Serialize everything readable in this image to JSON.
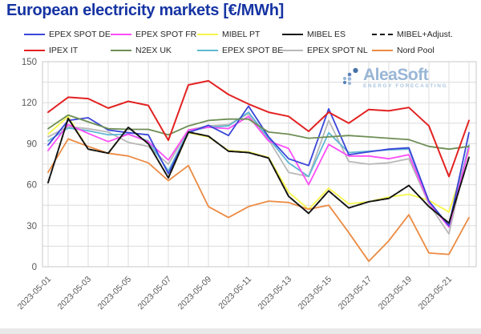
{
  "title": "European electricity markets [€/MWh]",
  "watermark": {
    "name": "AleaSoft",
    "tagline": "ENERGY FORECASTING"
  },
  "axes": {
    "y_tick_labels": [
      "0",
      "30",
      "60",
      "90",
      "120",
      "150"
    ],
    "x_tick_labels": [
      "2023-05-01",
      "2023-05-03",
      "2023-05-05",
      "2023-05-07",
      "2023-05-09",
      "2023-05-11",
      "2023-05-13",
      "2023-05-15",
      "2023-05-17",
      "2023-05-19",
      "2023-05-21"
    ]
  },
  "chart_data": {
    "type": "line",
    "title": "European electricity markets [€/MWh]",
    "xlabel": "",
    "ylabel": "",
    "ylim": [
      0,
      150
    ],
    "y_ticks": [
      0,
      30,
      60,
      90,
      120,
      150
    ],
    "grid": true,
    "legend_position": "top",
    "x": [
      "2023-05-01",
      "2023-05-02",
      "2023-05-03",
      "2023-05-04",
      "2023-05-05",
      "2023-05-06",
      "2023-05-07",
      "2023-05-08",
      "2023-05-09",
      "2023-05-10",
      "2023-05-11",
      "2023-05-12",
      "2023-05-13",
      "2023-05-14",
      "2023-05-15",
      "2023-05-16",
      "2023-05-17",
      "2023-05-18",
      "2023-05-19",
      "2023-05-20",
      "2023-05-21",
      "2023-05-22"
    ],
    "series": [
      {
        "name": "EPEX SPOT DE",
        "color": "#3a46d8",
        "dash": false,
        "values": [
          89,
          107,
          109,
          100,
          98,
          96.5,
          68,
          98,
          103.5,
          96,
          117.5,
          95,
          79,
          74,
          115.5,
          82,
          84,
          86,
          87,
          48,
          30,
          98
        ]
      },
      {
        "name": "EPEX SPOT FR",
        "color": "#fb4ef7",
        "dash": false,
        "values": [
          85,
          104,
          97.5,
          91.5,
          97,
          91.5,
          78,
          100,
          102,
          101,
          110,
          92,
          86.5,
          60,
          89.5,
          81,
          81,
          79,
          82,
          47,
          29,
          87
        ]
      },
      {
        "name": "MIBEL PT",
        "color": "#f6f64a",
        "dash": false,
        "values": [
          97,
          110,
          86,
          83,
          102,
          90,
          65,
          98,
          95,
          85,
          84,
          80,
          54.5,
          42,
          57.5,
          46,
          47.5,
          51,
          53,
          48.5,
          40,
          85
        ]
      },
      {
        "name": "MIBEL ES",
        "color": "#141414",
        "dash": false,
        "values": [
          61.5,
          108.5,
          86,
          83,
          102,
          90,
          65,
          98.5,
          95.5,
          84.5,
          83.5,
          79.5,
          51.5,
          39,
          55.5,
          43,
          47.5,
          50,
          59.5,
          44,
          32,
          80
        ]
      },
      {
        "name": "MIBEL+Adjust.",
        "color": "#141414",
        "dash": true,
        "values": [
          61.5,
          108.5,
          86,
          83,
          102,
          90,
          65,
          98.5,
          95.5,
          84.5,
          83.5,
          79.5,
          51.5,
          39,
          55.5,
          43,
          47.5,
          50,
          59.5,
          44,
          32,
          80
        ]
      },
      {
        "name": "IPEX IT",
        "color": "#e32222",
        "dash": false,
        "values": [
          113,
          124,
          123,
          116,
          121,
          118,
          92.5,
          133,
          136,
          126,
          119,
          113,
          110,
          99,
          113,
          105,
          115,
          114,
          116.5,
          103,
          66,
          107
        ]
      },
      {
        "name": "N2EX UK",
        "color": "#6d8e55",
        "dash": false,
        "values": [
          101,
          111,
          106,
          101,
          100.5,
          100.5,
          96.5,
          103,
          107,
          108,
          108,
          98.5,
          97,
          94,
          95,
          96,
          95,
          94,
          93,
          88,
          86,
          88
        ]
      },
      {
        "name": "EPEX SPOT BE",
        "color": "#5fb7d4",
        "dash": false,
        "values": [
          92,
          101.5,
          99.5,
          96.5,
          97,
          92,
          70,
          99,
          102,
          103,
          113,
          94,
          76,
          66,
          98,
          83.5,
          84.5,
          85.5,
          86,
          47,
          29.5,
          89
        ]
      },
      {
        "name": "EPEX SPOT NL",
        "color": "#b8b8b8",
        "dash": false,
        "values": [
          95,
          102.5,
          101,
          98.5,
          91,
          88,
          75,
          100,
          103,
          104,
          112,
          93,
          69,
          66,
          107,
          77,
          75,
          76,
          79,
          46,
          24,
          89
        ]
      },
      {
        "name": "Nord Pool",
        "color": "#ec8b43",
        "dash": false,
        "values": [
          69,
          93.5,
          88,
          83,
          81,
          76,
          63,
          74,
          44,
          36,
          44,
          48,
          47,
          42,
          45,
          25,
          4,
          19,
          38,
          10,
          9,
          36
        ]
      }
    ],
    "z_order": [
      "MIBEL PT",
      "Nord Pool",
      "EPEX SPOT NL",
      "EPEX SPOT BE",
      "EPEX SPOT FR",
      "EPEX SPOT DE",
      "N2EX UK",
      "MIBEL ES",
      "MIBEL+Adjust.",
      "IPEX IT"
    ]
  },
  "style": {
    "grid_color": "#dcdcdc",
    "border_color": "#c8c8c8",
    "axis_text_color": "#595959",
    "title_color": "#1634a3"
  }
}
